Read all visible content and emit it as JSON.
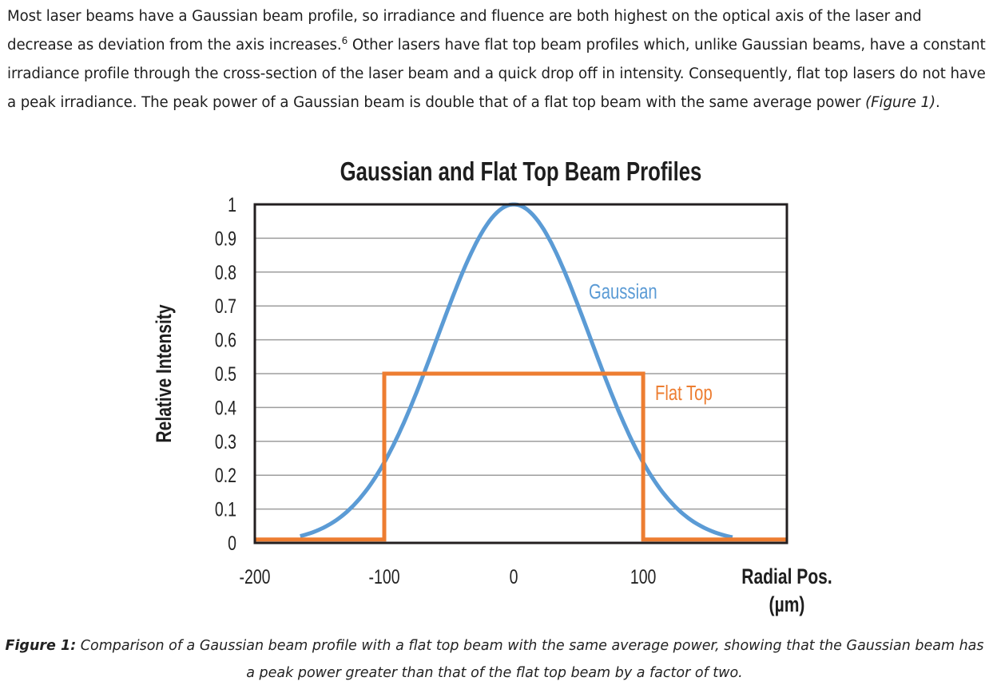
{
  "paragraph": {
    "part1": "Most laser beams have a Gaussian beam profile, so irradiance and fluence are both highest on the optical axis of the laser and decrease as deviation from the axis increases.",
    "footnote": "6",
    "part2": " Other lasers have flat top beam profiles which, unlike Gaussian beams, have a constant irradiance profile through the cross-section of the laser beam and a quick drop off in intensity. Consequently, flat top lasers do not have a peak irradiance. The peak power of a Gaussian beam is double that of a flat top beam with the same average power ",
    "figure_ref": "(Figure 1)",
    "end": "."
  },
  "chart_data": {
    "type": "line",
    "title": "Gaussian and Flat Top Beam Profiles",
    "xlabel_line1": "Radial Pos.",
    "xlabel_line2": "(µm)",
    "ylabel": "Relative Intensity",
    "xlim": [
      -200,
      211
    ],
    "ylim": [
      0,
      1
    ],
    "xticks": [
      "-200",
      "-100",
      "0",
      "100"
    ],
    "xtick_values": [
      -200,
      -100,
      0,
      100
    ],
    "yticks": [
      "0",
      "0.1",
      "0.2",
      "0.3",
      "0.4",
      "0.5",
      "0.6",
      "0.7",
      "0.8",
      "0.9",
      "1"
    ],
    "grid": true,
    "series": [
      {
        "name": "Gaussian",
        "color": "#5b9bd5",
        "function": "gaussian",
        "peak": 1,
        "center": 0,
        "sigma": 59
      },
      {
        "name": "Flat Top",
        "color": "#ed7d31",
        "x": [
          -200,
          -100,
          -100,
          100,
          100,
          211
        ],
        "y": [
          0.01,
          0.01,
          0.5,
          0.5,
          0.01,
          0.01
        ]
      }
    ]
  },
  "caption": {
    "label": "Figure 1:",
    "text": " Comparison of a Gaussian beam profile with a flat top beam with the same average power, showing that the Gaussian beam has a peak power greater than that of the flat top beam by a factor of two."
  }
}
